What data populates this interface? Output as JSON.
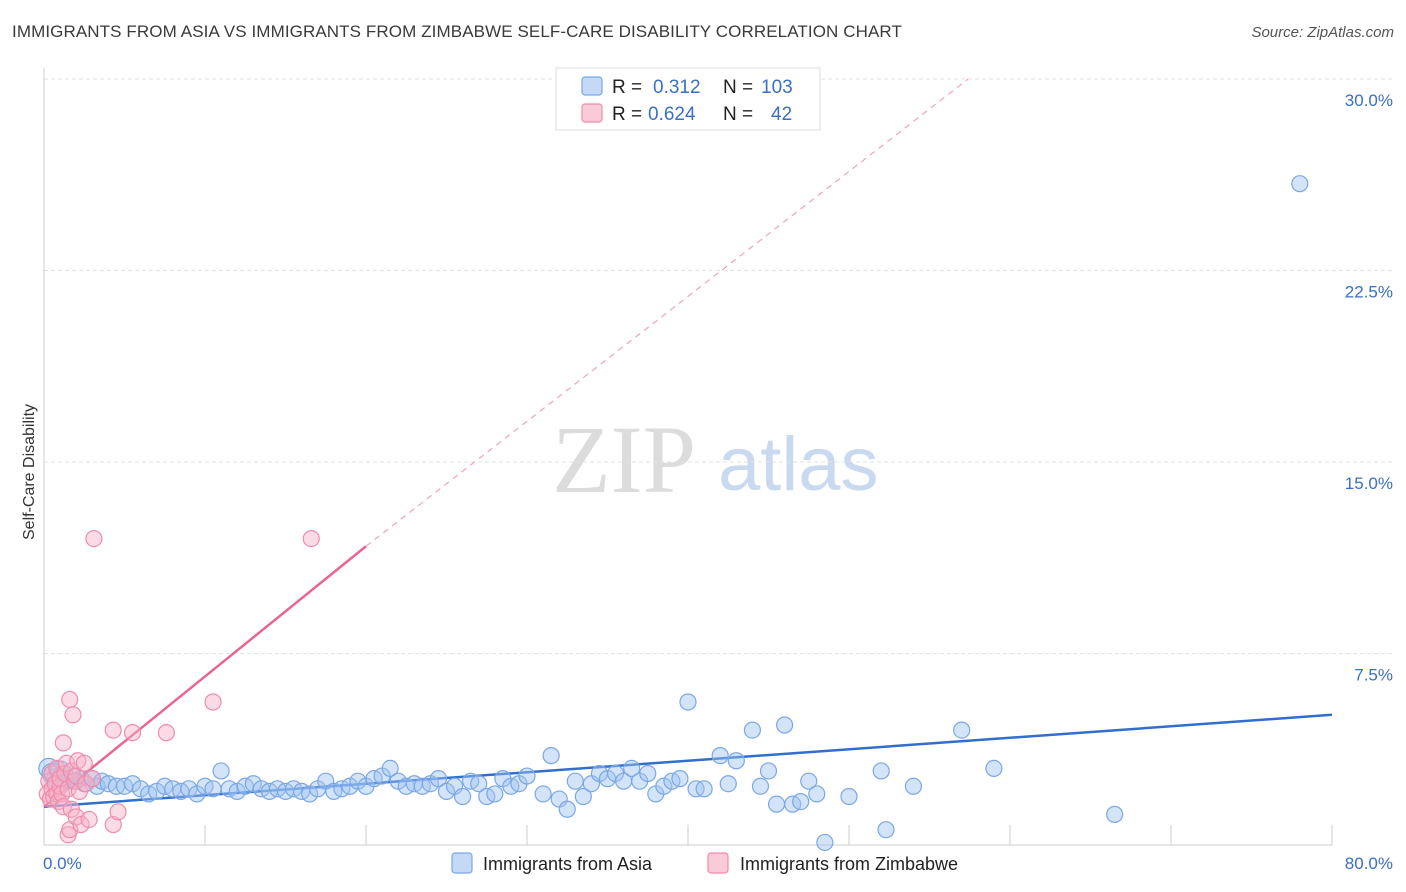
{
  "title": "IMMIGRANTS FROM ASIA VS IMMIGRANTS FROM ZIMBABWE SELF-CARE DISABILITY CORRELATION CHART",
  "source": "Source: ZipAtlas.com",
  "watermark": {
    "part1": "ZIP",
    "part2": "atlas"
  },
  "legend_box": {
    "rows": [
      {
        "r_label": "R =",
        "r_value": "0.312",
        "n_label": "N =",
        "n_value": "103",
        "color": "#7aa7e8"
      },
      {
        "r_label": "R =",
        "r_value": "0.624",
        "n_label": "N =",
        "n_value": "42",
        "color": "#f08cab"
      }
    ]
  },
  "bottom_legend": [
    "Immigrants from Asia",
    "Immigrants from Zimbabwe"
  ],
  "chart_data": {
    "type": "scatter",
    "title": "IMMIGRANTS FROM ASIA VS IMMIGRANTS FROM ZIMBABWE SELF-CARE DISABILITY CORRELATION CHART",
    "xlabel": "",
    "ylabel": "Self-Care Disability",
    "xlim": [
      0,
      80
    ],
    "ylim": [
      0,
      30
    ],
    "x_tick_labels": [
      "0.0%",
      "80.0%"
    ],
    "y_ticks": [
      7.5,
      15,
      22.5,
      30
    ],
    "y_tick_labels": [
      "7.5%",
      "15.0%",
      "22.5%",
      "30.0%"
    ],
    "grid": true,
    "series": [
      {
        "name": "Immigrants from Asia",
        "color": "#7aa7e8",
        "R": 0.312,
        "N": 103,
        "trend": {
          "x": [
            0,
            80
          ],
          "y": [
            1.5,
            5.1
          ],
          "style": "solid"
        },
        "points": [
          [
            0.3,
            3.0
          ],
          [
            0.5,
            2.8
          ],
          [
            0.8,
            2.6
          ],
          [
            1.0,
            2.9
          ],
          [
            1.2,
            2.7
          ],
          [
            1.5,
            2.5
          ],
          [
            1.8,
            2.7
          ],
          [
            2.0,
            2.5
          ],
          [
            2.3,
            2.6
          ],
          [
            2.5,
            2.4
          ],
          [
            3.0,
            2.6
          ],
          [
            3.3,
            2.3
          ],
          [
            3.6,
            2.5
          ],
          [
            4.0,
            2.4
          ],
          [
            4.5,
            2.3
          ],
          [
            5.0,
            2.3
          ],
          [
            5.5,
            2.4
          ],
          [
            6.0,
            2.2
          ],
          [
            6.5,
            2.0
          ],
          [
            7.0,
            2.1
          ],
          [
            7.5,
            2.3
          ],
          [
            8.0,
            2.2
          ],
          [
            8.5,
            2.1
          ],
          [
            9.0,
            2.2
          ],
          [
            9.5,
            2.0
          ],
          [
            10.0,
            2.3
          ],
          [
            10.5,
            2.2
          ],
          [
            11.0,
            2.9
          ],
          [
            11.5,
            2.2
          ],
          [
            12.0,
            2.1
          ],
          [
            12.5,
            2.3
          ],
          [
            13.0,
            2.4
          ],
          [
            13.5,
            2.2
          ],
          [
            14.0,
            2.1
          ],
          [
            14.5,
            2.2
          ],
          [
            15.0,
            2.1
          ],
          [
            15.5,
            2.2
          ],
          [
            16.0,
            2.1
          ],
          [
            16.5,
            2.0
          ],
          [
            17.0,
            2.2
          ],
          [
            17.5,
            2.5
          ],
          [
            18.0,
            2.1
          ],
          [
            18.5,
            2.2
          ],
          [
            19.0,
            2.3
          ],
          [
            19.5,
            2.5
          ],
          [
            20.0,
            2.3
          ],
          [
            20.5,
            2.6
          ],
          [
            21.0,
            2.7
          ],
          [
            21.5,
            3.0
          ],
          [
            22.0,
            2.5
          ],
          [
            22.5,
            2.3
          ],
          [
            23.0,
            2.4
          ],
          [
            23.5,
            2.3
          ],
          [
            24.0,
            2.4
          ],
          [
            24.5,
            2.6
          ],
          [
            25.0,
            2.1
          ],
          [
            25.5,
            2.3
          ],
          [
            26.0,
            1.9
          ],
          [
            26.5,
            2.5
          ],
          [
            27.0,
            2.4
          ],
          [
            27.5,
            1.9
          ],
          [
            28.0,
            2.0
          ],
          [
            28.5,
            2.6
          ],
          [
            29.0,
            2.3
          ],
          [
            29.5,
            2.4
          ],
          [
            30.0,
            2.7
          ],
          [
            31.0,
            2.0
          ],
          [
            31.5,
            3.5
          ],
          [
            32.0,
            1.8
          ],
          [
            32.5,
            1.4
          ],
          [
            33.0,
            2.5
          ],
          [
            33.5,
            1.9
          ],
          [
            34.0,
            2.4
          ],
          [
            34.5,
            2.8
          ],
          [
            35.0,
            2.6
          ],
          [
            35.5,
            2.8
          ],
          [
            36.0,
            2.5
          ],
          [
            36.5,
            3.0
          ],
          [
            37.0,
            2.5
          ],
          [
            37.5,
            2.8
          ],
          [
            38.0,
            2.0
          ],
          [
            38.5,
            2.3
          ],
          [
            39.0,
            2.5
          ],
          [
            39.5,
            2.6
          ],
          [
            40.0,
            5.6
          ],
          [
            40.5,
            2.2
          ],
          [
            41.0,
            2.2
          ],
          [
            42.0,
            3.5
          ],
          [
            42.5,
            2.4
          ],
          [
            43.0,
            3.3
          ],
          [
            44.0,
            4.5
          ],
          [
            44.5,
            2.3
          ],
          [
            45.0,
            2.9
          ],
          [
            45.5,
            1.6
          ],
          [
            46.0,
            4.7
          ],
          [
            46.5,
            1.6
          ],
          [
            47.0,
            1.7
          ],
          [
            47.5,
            2.5
          ],
          [
            48.0,
            2.0
          ],
          [
            48.5,
            0.1
          ],
          [
            50.0,
            1.9
          ],
          [
            52.0,
            2.9
          ],
          [
            52.3,
            0.6
          ],
          [
            54.0,
            2.3
          ],
          [
            57.0,
            4.5
          ],
          [
            59.0,
            3.0
          ],
          [
            66.5,
            1.2
          ],
          [
            78.0,
            25.9
          ]
        ]
      },
      {
        "name": "Immigrants from Zimbabwe",
        "color": "#f08cab",
        "R": 0.624,
        "N": 42,
        "trend": {
          "x": [
            0,
            20
          ],
          "y": [
            1.5,
            11.7
          ],
          "style": "solid",
          "extension": {
            "x": [
              20,
              57.4
            ],
            "y": [
              11.7,
              30.0
            ],
            "style": "dashed"
          }
        },
        "points": [
          [
            0.2,
            2.0
          ],
          [
            0.3,
            2.5
          ],
          [
            0.4,
            1.8
          ],
          [
            0.5,
            2.2
          ],
          [
            0.5,
            2.8
          ],
          [
            0.6,
            1.9
          ],
          [
            0.7,
            2.4
          ],
          [
            0.8,
            2.0
          ],
          [
            0.8,
            3.0
          ],
          [
            0.9,
            1.7
          ],
          [
            1.0,
            2.3
          ],
          [
            1.0,
            2.6
          ],
          [
            1.1,
            2.0
          ],
          [
            1.2,
            4.0
          ],
          [
            1.2,
            1.5
          ],
          [
            1.3,
            2.8
          ],
          [
            1.4,
            3.2
          ],
          [
            1.5,
            2.2
          ],
          [
            1.5,
            0.4
          ],
          [
            1.6,
            5.7
          ],
          [
            1.6,
            0.6
          ],
          [
            1.7,
            2.9
          ],
          [
            1.7,
            1.4
          ],
          [
            1.8,
            5.1
          ],
          [
            1.9,
            2.5
          ],
          [
            2.0,
            2.7
          ],
          [
            2.0,
            1.1
          ],
          [
            2.1,
            3.3
          ],
          [
            2.2,
            2.1
          ],
          [
            2.3,
            0.8
          ],
          [
            2.5,
            3.2
          ],
          [
            2.6,
            2.4
          ],
          [
            2.8,
            1.0
          ],
          [
            3.0,
            2.6
          ],
          [
            3.1,
            12.0
          ],
          [
            4.3,
            0.8
          ],
          [
            4.3,
            4.5
          ],
          [
            4.6,
            1.3
          ],
          [
            5.5,
            4.4
          ],
          [
            7.6,
            4.4
          ],
          [
            10.5,
            5.6
          ],
          [
            16.6,
            12.0
          ]
        ]
      }
    ]
  }
}
